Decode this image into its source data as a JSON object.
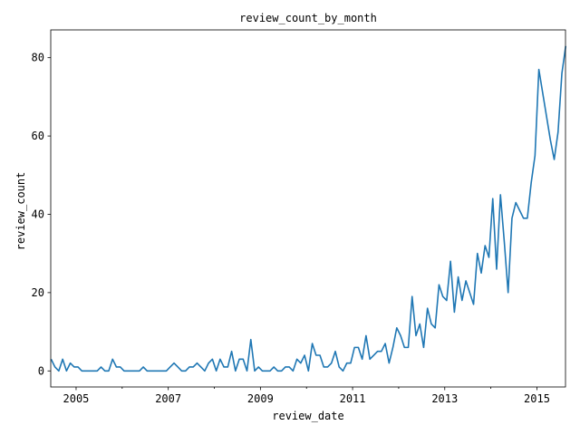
{
  "chart_data": {
    "type": "line",
    "title": "review_count_by_month",
    "xlabel": "review_date",
    "ylabel": "review_count",
    "xlim": [
      2004.45,
      2015.62
    ],
    "ylim": [
      -4.1,
      87.1
    ],
    "xticks": [
      2005,
      2007,
      2009,
      2011,
      2013,
      2015
    ],
    "xtick_labels": [
      "2005",
      "2007",
      "2009",
      "2011",
      "2013",
      "2015"
    ],
    "yticks": [
      0,
      20,
      40,
      60,
      80
    ],
    "ytick_labels": [
      "0",
      "20",
      "40",
      "60",
      "80"
    ],
    "grid": false,
    "color": "#1f77b4",
    "series": [
      {
        "name": "review_count",
        "start": [
          2004,
          6
        ],
        "values": [
          3,
          1,
          0,
          3,
          0,
          2,
          1,
          1,
          0,
          0,
          0,
          0,
          0,
          1,
          0,
          0,
          3,
          1,
          1,
          0,
          0,
          0,
          0,
          0,
          1,
          0,
          0,
          0,
          0,
          0,
          0,
          1,
          2,
          1,
          0,
          0,
          1,
          1,
          2,
          1,
          0,
          2,
          3,
          0,
          3,
          1,
          1,
          5,
          0,
          3,
          3,
          0,
          8,
          0,
          1,
          0,
          0,
          0,
          1,
          0,
          0,
          1,
          1,
          0,
          3,
          2,
          4,
          0,
          7,
          4,
          4,
          1,
          1,
          2,
          5,
          1,
          0,
          2,
          2,
          6,
          6,
          3,
          9,
          3,
          4,
          5,
          5,
          7,
          2,
          6,
          11,
          9,
          6,
          6,
          19,
          9,
          12,
          6,
          16,
          12,
          11,
          22,
          19,
          18,
          28,
          15,
          24,
          18,
          23,
          20,
          17,
          30,
          25,
          32,
          29,
          44,
          26,
          45,
          33,
          20,
          39,
          43,
          41,
          39,
          39,
          48,
          55,
          77,
          71,
          65,
          59,
          54,
          61,
          76,
          83
        ]
      }
    ]
  }
}
